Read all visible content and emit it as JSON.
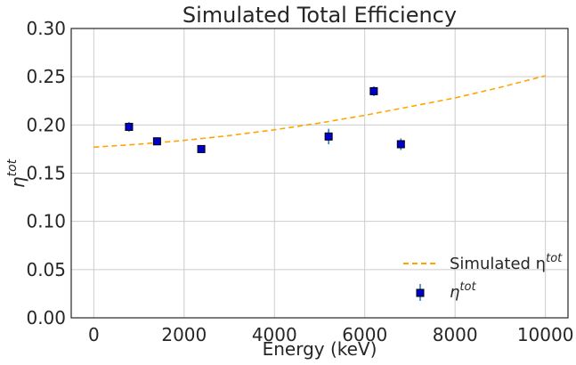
{
  "chart_data": {
    "type": "scatter",
    "title": "Simulated Total Efficiency",
    "xlabel": "Energy (keV)",
    "ylabel_base": "η",
    "ylabel_sup": "tot",
    "xlim": [
      -500,
      10500
    ],
    "ylim": [
      0.0,
      0.3
    ],
    "xticks": [
      0,
      2000,
      4000,
      6000,
      8000,
      10000
    ],
    "xtick_labels": [
      "0",
      "2000",
      "4000",
      "6000",
      "8000",
      "10000"
    ],
    "yticks": [
      0.0,
      0.05,
      0.1,
      0.15,
      0.2,
      0.25,
      0.3
    ],
    "ytick_labels": [
      "0.00",
      "0.05",
      "0.10",
      "0.15",
      "0.20",
      "0.25",
      "0.30"
    ],
    "grid": true,
    "legend_position": "lower-right",
    "series": [
      {
        "name_base": "Simulated η",
        "name_sup": "tot",
        "kind": "line",
        "style": "dashed",
        "color": "#ffa500",
        "x": [
          0,
          1000,
          2000,
          3000,
          4000,
          5000,
          6000,
          7000,
          8000,
          9000,
          10000
        ],
        "y": [
          0.177,
          0.18,
          0.184,
          0.189,
          0.195,
          0.202,
          0.21,
          0.219,
          0.228,
          0.239,
          0.251
        ]
      },
      {
        "name_base": "η",
        "name_sup": "tot",
        "kind": "errorbar",
        "marker_color": "#0000cc",
        "errorbar_color": "#1f77b4",
        "x": [
          780,
          1400,
          2380,
          5200,
          6200,
          6800
        ],
        "y": [
          0.198,
          0.183,
          0.175,
          0.188,
          0.235,
          0.18
        ],
        "err": [
          0.005,
          0.004,
          0.004,
          0.008,
          0.005,
          0.006
        ]
      }
    ]
  }
}
